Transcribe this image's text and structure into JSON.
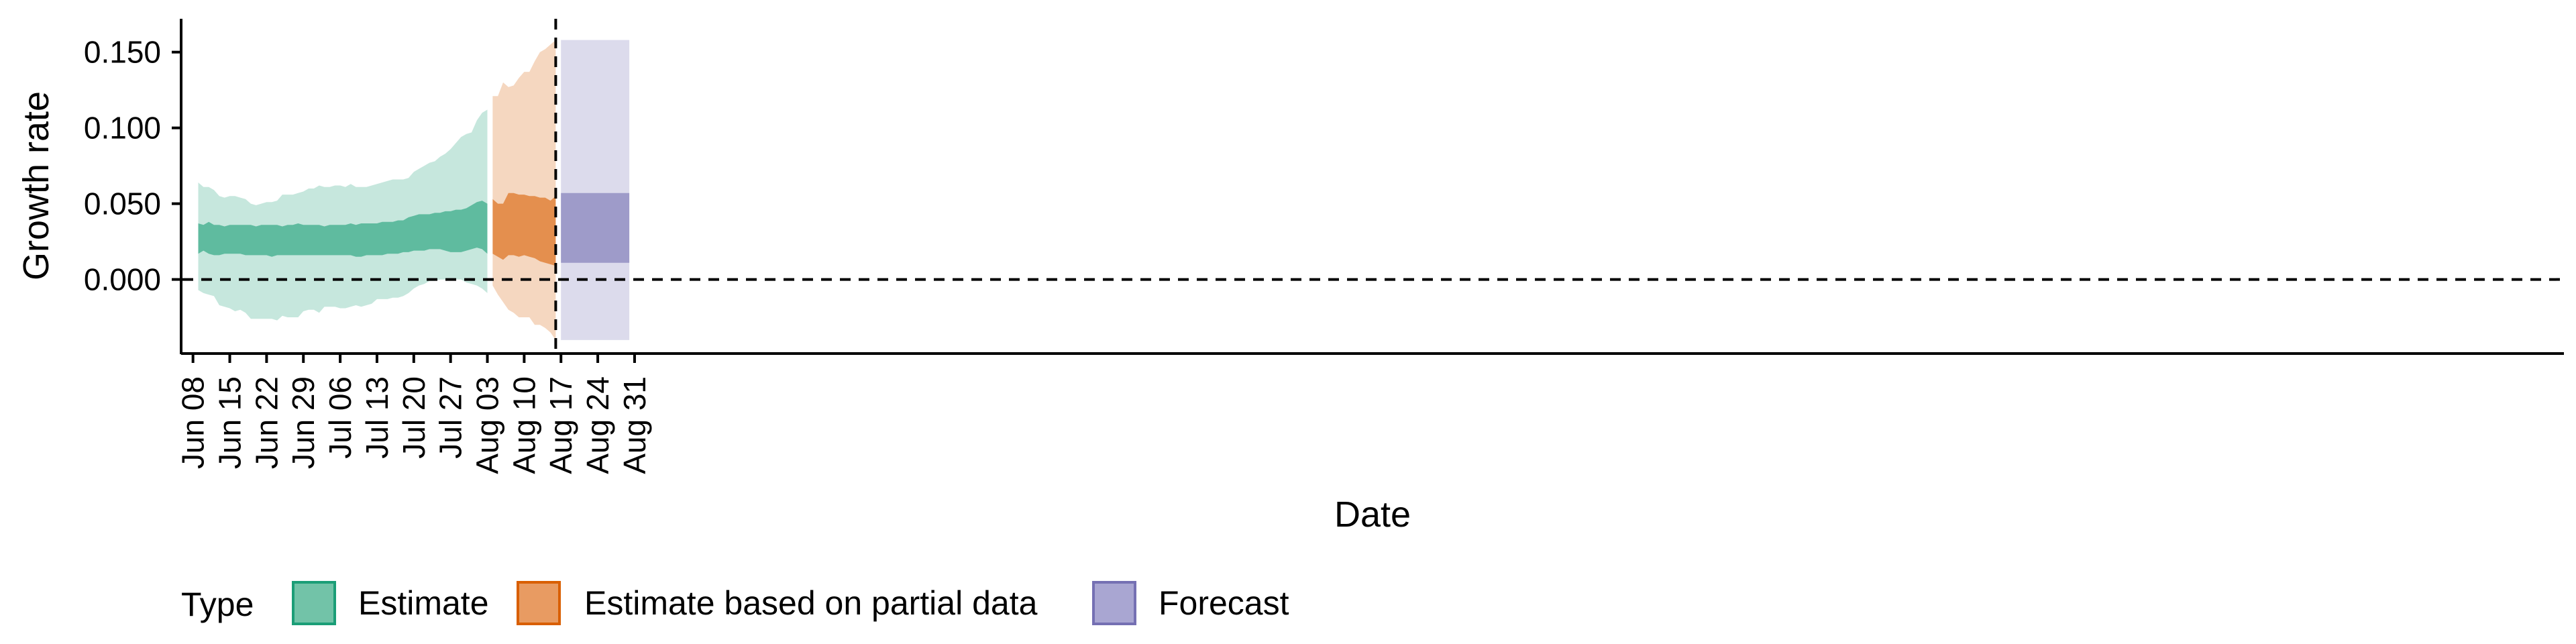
{
  "chart_data": {
    "type": "area",
    "title": "",
    "xlabel": "Date",
    "ylabel": "Growth rate",
    "x_range": [
      "2020-06-06",
      "2021-09-02"
    ],
    "y_range": [
      -0.048,
      0.172
    ],
    "y_ticks": [
      0,
      0.05,
      0.1,
      0.15
    ],
    "y_tick_labels": [
      "0.000",
      "0.050",
      "0.100",
      "0.150"
    ],
    "x_ticks": [
      "2020-06-08",
      "2020-06-15",
      "2020-06-22",
      "2020-06-29",
      "2020-07-06",
      "2020-07-13",
      "2020-07-20",
      "2020-07-27",
      "2020-08-03",
      "2020-08-10",
      "2020-08-17",
      "2020-08-24",
      "2020-08-31"
    ],
    "x_tick_labels": [
      "Jun 08",
      "Jun 15",
      "Jun 22",
      "Jun 29",
      "Jul 06",
      "Jul 13",
      "Jul 20",
      "Jul 27",
      "Aug 03",
      "Aug 10",
      "Aug 17",
      "Aug 24",
      "Aug 31"
    ],
    "reference_lines": {
      "horizontal_y": 0,
      "vertical_date": "2020-08-16",
      "style": "dashed"
    },
    "grid": false,
    "legend": {
      "title": "Type",
      "position": "bottom-left"
    },
    "series": [
      {
        "name": "Estimate",
        "color": "#1b9e77",
        "x": [
          "2020-06-09",
          "2020-06-10",
          "2020-06-11",
          "2020-06-12",
          "2020-06-13",
          "2020-06-14",
          "2020-06-15",
          "2020-06-16",
          "2020-06-17",
          "2020-06-18",
          "2020-06-19",
          "2020-06-20",
          "2020-06-21",
          "2020-06-22",
          "2020-06-23",
          "2020-06-24",
          "2020-06-25",
          "2020-06-26",
          "2020-06-27",
          "2020-06-28",
          "2020-06-29",
          "2020-06-30",
          "2020-07-01",
          "2020-07-02",
          "2020-07-03",
          "2020-07-04",
          "2020-07-05",
          "2020-07-06",
          "2020-07-07",
          "2020-07-08",
          "2020-07-09",
          "2020-07-10",
          "2020-07-11",
          "2020-07-12",
          "2020-07-13",
          "2020-07-14",
          "2020-07-15",
          "2020-07-16",
          "2020-07-17",
          "2020-07-18",
          "2020-07-19",
          "2020-07-20",
          "2020-07-21",
          "2020-07-22",
          "2020-07-23",
          "2020-07-24",
          "2020-07-25",
          "2020-07-26",
          "2020-07-27",
          "2020-07-28",
          "2020-07-29",
          "2020-07-30",
          "2020-07-31",
          "2020-08-01",
          "2020-08-02",
          "2020-08-03"
        ],
        "lower_90": [
          -0.007,
          -0.009,
          -0.01,
          -0.011,
          -0.017,
          -0.018,
          -0.019,
          -0.021,
          -0.02,
          -0.022,
          -0.026,
          -0.026,
          -0.026,
          -0.026,
          -0.026,
          -0.027,
          -0.024,
          -0.025,
          -0.025,
          -0.025,
          -0.021,
          -0.02,
          -0.02,
          -0.022,
          -0.018,
          -0.018,
          -0.018,
          -0.019,
          -0.019,
          -0.018,
          -0.017,
          -0.018,
          -0.017,
          -0.016,
          -0.013,
          -0.013,
          -0.013,
          -0.012,
          -0.012,
          -0.011,
          -0.009,
          -0.006,
          -0.004,
          -0.003,
          -0.001,
          -0.001,
          0.0,
          0.0,
          0.0,
          0.0,
          0.0,
          -0.002,
          -0.003,
          -0.004,
          -0.006,
          -0.009
        ],
        "lower_50": [
          0.017,
          0.019,
          0.017,
          0.016,
          0.016,
          0.017,
          0.017,
          0.017,
          0.017,
          0.016,
          0.016,
          0.016,
          0.016,
          0.016,
          0.015,
          0.016,
          0.016,
          0.016,
          0.016,
          0.016,
          0.016,
          0.016,
          0.016,
          0.016,
          0.016,
          0.016,
          0.016,
          0.016,
          0.016,
          0.016,
          0.015,
          0.015,
          0.016,
          0.016,
          0.016,
          0.016,
          0.017,
          0.017,
          0.017,
          0.018,
          0.018,
          0.019,
          0.019,
          0.019,
          0.02,
          0.02,
          0.02,
          0.019,
          0.018,
          0.018,
          0.018,
          0.019,
          0.02,
          0.021,
          0.02,
          0.017
        ],
        "upper_50": [
          0.037,
          0.036,
          0.038,
          0.036,
          0.036,
          0.035,
          0.036,
          0.036,
          0.036,
          0.036,
          0.036,
          0.035,
          0.036,
          0.036,
          0.036,
          0.036,
          0.035,
          0.036,
          0.036,
          0.037,
          0.036,
          0.036,
          0.036,
          0.036,
          0.035,
          0.036,
          0.036,
          0.036,
          0.036,
          0.037,
          0.036,
          0.037,
          0.037,
          0.037,
          0.037,
          0.038,
          0.038,
          0.038,
          0.039,
          0.039,
          0.041,
          0.042,
          0.043,
          0.043,
          0.043,
          0.044,
          0.044,
          0.045,
          0.045,
          0.046,
          0.046,
          0.047,
          0.049,
          0.051,
          0.052,
          0.05
        ],
        "upper_90": [
          0.064,
          0.061,
          0.061,
          0.059,
          0.055,
          0.054,
          0.055,
          0.055,
          0.054,
          0.053,
          0.05,
          0.049,
          0.05,
          0.051,
          0.051,
          0.052,
          0.056,
          0.056,
          0.056,
          0.057,
          0.058,
          0.06,
          0.06,
          0.062,
          0.061,
          0.061,
          0.062,
          0.062,
          0.061,
          0.063,
          0.061,
          0.061,
          0.061,
          0.062,
          0.063,
          0.064,
          0.065,
          0.066,
          0.066,
          0.066,
          0.067,
          0.071,
          0.073,
          0.075,
          0.077,
          0.078,
          0.081,
          0.083,
          0.086,
          0.09,
          0.094,
          0.096,
          0.097,
          0.105,
          0.11,
          0.112
        ]
      },
      {
        "name": "Estimate based on partial data",
        "color": "#d95f02",
        "x": [
          "2020-08-04",
          "2020-08-05",
          "2020-08-06",
          "2020-08-07",
          "2020-08-08",
          "2020-08-09",
          "2020-08-10",
          "2020-08-11",
          "2020-08-12",
          "2020-08-13",
          "2020-08-14",
          "2020-08-15",
          "2020-08-16"
        ],
        "lower_90": [
          -0.004,
          -0.01,
          -0.015,
          -0.02,
          -0.022,
          -0.025,
          -0.025,
          -0.025,
          -0.03,
          -0.03,
          -0.032,
          -0.035,
          -0.04
        ],
        "lower_50": [
          0.017,
          0.015,
          0.013,
          0.016,
          0.016,
          0.015,
          0.016,
          0.015,
          0.014,
          0.012,
          0.011,
          0.01,
          0.009
        ],
        "upper_50": [
          0.053,
          0.05,
          0.05,
          0.057,
          0.057,
          0.056,
          0.056,
          0.055,
          0.055,
          0.054,
          0.054,
          0.052,
          0.055
        ],
        "upper_90": [
          0.121,
          0.121,
          0.13,
          0.127,
          0.128,
          0.133,
          0.137,
          0.137,
          0.144,
          0.15,
          0.152,
          0.155,
          0.158
        ]
      },
      {
        "name": "Forecast",
        "color": "#7570b3",
        "x": [
          "2020-08-17",
          "2020-08-30"
        ],
        "lower_90": [
          -0.04,
          -0.04
        ],
        "lower_50": [
          0.011,
          0.011
        ],
        "upper_50": [
          0.057,
          0.057
        ],
        "upper_90": [
          0.158,
          0.158
        ]
      }
    ]
  }
}
